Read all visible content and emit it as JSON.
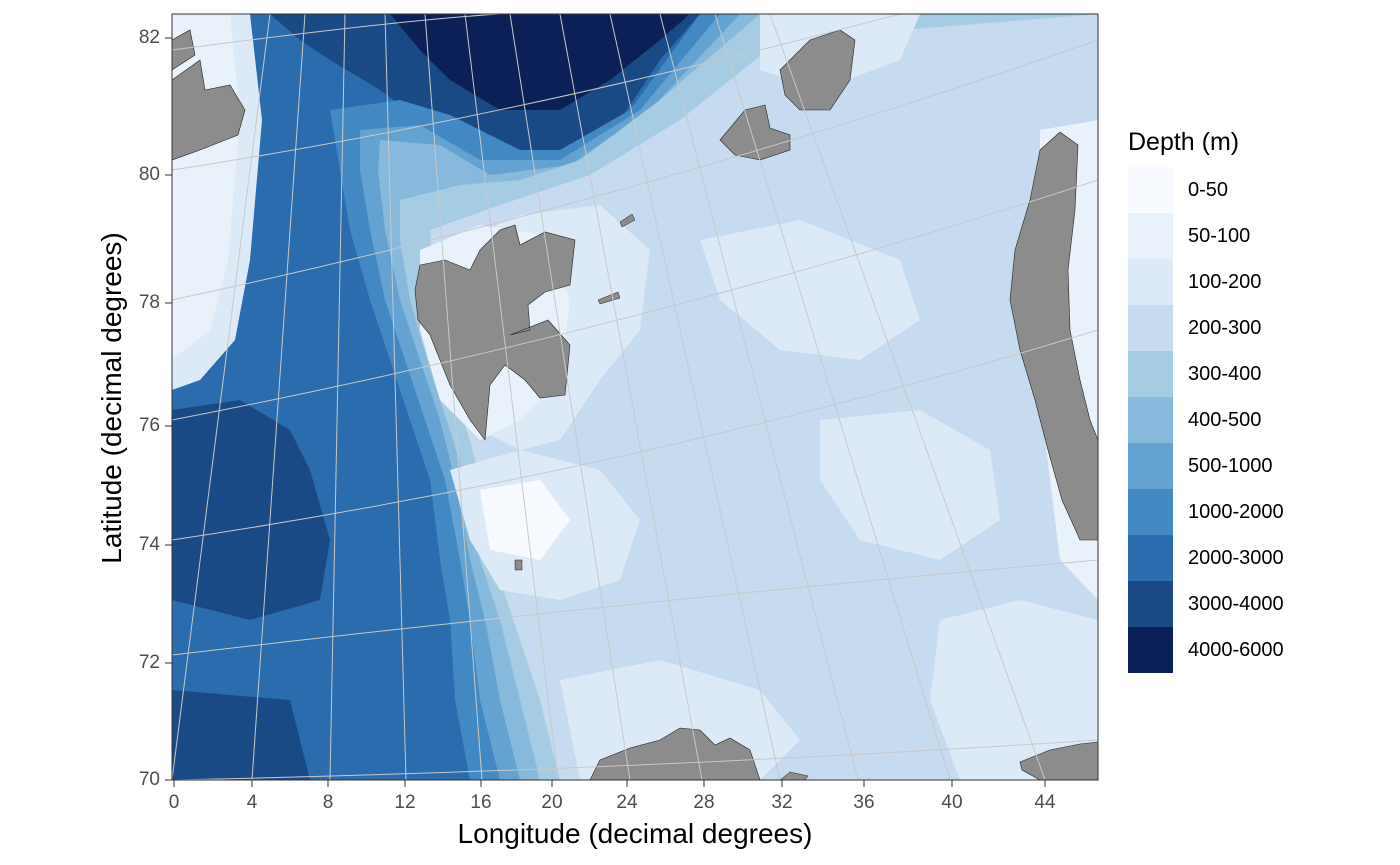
{
  "map": {
    "x_axis_title": "Longitude (decimal degrees)",
    "y_axis_title": "Latitude (decimal degrees)",
    "x_ticks": [
      "0",
      "4",
      "8",
      "12",
      "16",
      "20",
      "24",
      "28",
      "32",
      "36",
      "40",
      "44"
    ],
    "y_ticks": [
      "82",
      "80",
      "78",
      "76",
      "74",
      "72",
      "70"
    ],
    "land_color": "#8c8c8c",
    "graticule_color": "#c8c8c8"
  },
  "legend": {
    "title": "Depth (m)",
    "items": [
      {
        "label": "0-50",
        "color": "#f7fbff"
      },
      {
        "label": "50-100",
        "color": "#e9f2fb"
      },
      {
        "label": "100-200",
        "color": "#dce9f6"
      },
      {
        "label": "200-300",
        "color": "#c6dbef"
      },
      {
        "label": "300-400",
        "color": "#a6cce3"
      },
      {
        "label": "400-500",
        "color": "#86b9db"
      },
      {
        "label": "500-1000",
        "color": "#63a2d1"
      },
      {
        "label": "1000-2000",
        "color": "#4288c3"
      },
      {
        "label": "2000-3000",
        "color": "#2a6cae"
      },
      {
        "label": "3000-4000",
        "color": "#1a4a86"
      },
      {
        "label": "4000-6000",
        "color": "#0b2057"
      }
    ]
  }
}
